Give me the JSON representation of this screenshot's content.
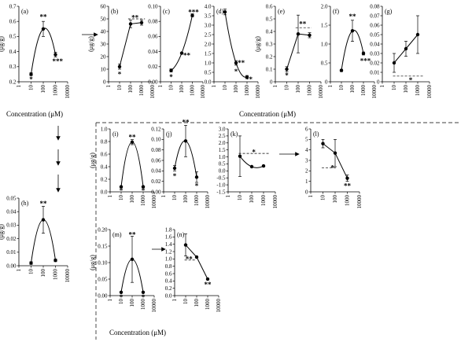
{
  "xlabel_top": "Concentration (μM)",
  "xlabel_left": "Concentration (μM)",
  "xlabel_bottom": "Concentration (μM)",
  "x_ticks_default": [
    "1",
    "10",
    "100",
    "1000",
    "10000"
  ],
  "chart_data": [
    {
      "id": "a",
      "tag": "(a)",
      "type": "line",
      "ylabel": "(μg/g)",
      "x": [
        10,
        100,
        1000
      ],
      "y": [
        0.25,
        0.55,
        0.38
      ],
      "yerr": [
        0.01,
        0.05,
        0.015
      ],
      "ylim": [
        0.2,
        0.7
      ],
      "yticks": [
        "0.2",
        "0.3",
        "0.4",
        "0.5",
        "0.6",
        "0.7"
      ],
      "xlim": [
        1,
        10000
      ],
      "xticks": [
        "1",
        "10",
        "100",
        "1000",
        "10000"
      ],
      "annotations": [
        {
          "text": "**",
          "x": 100,
          "y": 0.63
        },
        {
          "text": "*",
          "x": 10,
          "y": 0.215
        },
        {
          "text": "***",
          "x": 1500,
          "y": 0.335
        }
      ],
      "smooth": true
    },
    {
      "id": "b",
      "tag": "(b)",
      "type": "line",
      "ylabel": "(μg/g)",
      "x": [
        10,
        100,
        1000
      ],
      "y": [
        12,
        46,
        47
      ],
      "yerr": [
        2,
        3,
        2
      ],
      "ylim": [
        0,
        60
      ],
      "yticks": [
        "0",
        "10",
        "20",
        "30",
        "40",
        "50",
        "60"
      ],
      "xlim": [
        1,
        10000
      ],
      "xticks": [
        "1",
        "10",
        "100",
        "1000",
        "10000"
      ],
      "annotations": [
        {
          "text": "**",
          "x": 250,
          "y": 51
        },
        {
          "text": "*",
          "x": 10,
          "y": 6
        }
      ],
      "dashed": [
        {
          "x": [
            60,
            2000
          ],
          "y": 50
        }
      ]
    },
    {
      "id": "c",
      "tag": "(c)",
      "type": "line",
      "ylabel": "",
      "x": [
        10,
        100,
        1000
      ],
      "y": [
        0.015,
        0.038,
        0.088
      ],
      "yerr": [
        0.002,
        0,
        0.002
      ],
      "ylim": [
        0,
        0.1
      ],
      "yticks": [
        "0.00",
        "0.02",
        "0.04",
        "0.06",
        "0.08",
        "0.10"
      ],
      "xlim": [
        1,
        10000
      ],
      "xticks": [
        "1",
        "10",
        "100",
        "1000",
        "10000"
      ],
      "annotations": [
        {
          "text": "***",
          "x": 1300,
          "y": 0.092
        },
        {
          "text": "**",
          "x": 300,
          "y": 0.035
        },
        {
          "text": "*",
          "x": 10,
          "y": 0.006
        }
      ],
      "smooth": true
    },
    {
      "id": "d",
      "tag": "(d)",
      "type": "line",
      "ylabel": "",
      "x": [
        10,
        100,
        1000
      ],
      "y": [
        3.7,
        1.0,
        0.25
      ],
      "yerr": [
        0.15,
        0.12,
        0.08
      ],
      "ylim": [
        0,
        4.0
      ],
      "yticks": [
        "0.0",
        "0.5",
        "1.0",
        "1.5",
        "2.0",
        "2.5",
        "3.0",
        "3.5",
        "4.0"
      ],
      "xlim": [
        1,
        10000
      ],
      "xticks": [
        "1",
        "10",
        "100",
        "1000",
        "10000"
      ],
      "annotations": [
        {
          "text": "*",
          "x": 100,
          "y": 0.55
        },
        {
          "text": "**",
          "x": 300,
          "y": 1.0
        },
        {
          "text": "**",
          "x": 1500,
          "y": 0.12
        }
      ],
      "smooth": true
    },
    {
      "id": "e",
      "tag": "(e)",
      "type": "line",
      "ylabel": "(μg/g)",
      "x": [
        10,
        100,
        1000
      ],
      "y": [
        0.1,
        0.38,
        0.37
      ],
      "yerr": [
        0.02,
        0.15,
        0.02
      ],
      "ylim": [
        0,
        0.6
      ],
      "yticks": [
        "0",
        "0.1",
        "0.2",
        "0.3",
        "0.4",
        "0.5",
        "0.6"
      ],
      "xlim": [
        1,
        10000
      ],
      "xticks": [
        "1",
        "10",
        "100",
        "1000",
        "10000"
      ],
      "annotations": [
        {
          "text": "**",
          "x": 250,
          "y": 0.46
        },
        {
          "text": "*",
          "x": 10,
          "y": 0.05
        }
      ],
      "dashed": [
        {
          "x": [
            60,
            1500
          ],
          "y": 0.43
        }
      ]
    },
    {
      "id": "f",
      "tag": "(f)",
      "type": "line",
      "ylabel": "",
      "x": [
        10,
        100,
        1000
      ],
      "y": [
        0.3,
        1.35,
        0.75
      ],
      "yerr": [
        0.03,
        0.28,
        0.04
      ],
      "ylim": [
        0,
        2.0
      ],
      "yticks": [
        "0",
        "0.5",
        "1.0",
        "1.5",
        "2.0"
      ],
      "xlim": [
        1,
        10000
      ],
      "xticks": [
        "1",
        "10",
        "100",
        "1000",
        "10000"
      ],
      "annotations": [
        {
          "text": "**",
          "x": 100,
          "y": 1.73
        },
        {
          "text": "***",
          "x": 1500,
          "y": 0.55
        }
      ],
      "smooth": true
    },
    {
      "id": "g",
      "tag": "(g)",
      "type": "line",
      "ylabel": "",
      "x": [
        10,
        100,
        1000
      ],
      "y": [
        0.02,
        0.035,
        0.05
      ],
      "yerr": [
        0.01,
        0.008,
        0.02
      ],
      "ylim": [
        0,
        0.08
      ],
      "yticks": [
        "0",
        "0.01",
        "0.02",
        "0.03",
        "0.04",
        "0.05",
        "0.06",
        "0.07",
        "0.08"
      ],
      "xlim": [
        1,
        10000
      ],
      "xticks": [
        "1",
        "10",
        "100",
        "1000",
        "10000"
      ],
      "annotations": [
        {
          "text": "*",
          "x": 250,
          "y": 0.0015
        }
      ],
      "dashed": [
        {
          "x": [
            8,
            3000
          ],
          "y": 0.006
        }
      ]
    },
    {
      "id": "h",
      "tag": "(h)",
      "type": "line",
      "ylabel": "(μg/g)",
      "x": [
        10,
        100,
        1000
      ],
      "y": [
        0.002,
        0.034,
        0.004
      ],
      "yerr": [
        0.001,
        0.01,
        0.001
      ],
      "ylim": [
        0,
        0.05
      ],
      "yticks": [
        "0.00",
        "0.01",
        "0.02",
        "0.03",
        "0.04",
        "0.05"
      ],
      "xlim": [
        1,
        10000
      ],
      "xticks": [
        "1",
        "10",
        "100",
        "1000",
        "10000"
      ],
      "annotations": [
        {
          "text": "**",
          "x": 100,
          "y": 0.046
        }
      ],
      "smooth": true
    },
    {
      "id": "i",
      "tag": "(i)",
      "type": "line",
      "ylabel": "(μg/g)",
      "x": [
        10,
        100,
        1000
      ],
      "y": [
        0.08,
        0.79,
        0.08
      ],
      "yerr": [
        0.01,
        0.04,
        0.01
      ],
      "ylim": [
        0,
        1.0
      ],
      "yticks": [
        "0.0",
        "0.2",
        "0.4",
        "0.6",
        "0.8",
        "1.0"
      ],
      "xlim": [
        1,
        10000
      ],
      "xticks": [
        "1",
        "10",
        "100",
        "1000",
        "10000"
      ],
      "annotations": [
        {
          "text": "**",
          "x": 100,
          "y": 0.87
        },
        {
          "text": "*",
          "x": 10,
          "y": 0.02
        },
        {
          "text": "*",
          "x": 1000,
          "y": 0.02
        }
      ],
      "smooth": true
    },
    {
      "id": "j",
      "tag": "(j)",
      "type": "line",
      "ylabel": "",
      "x": [
        10,
        100,
        1000
      ],
      "y": [
        0.045,
        0.097,
        0.028
      ],
      "yerr": [
        0.005,
        0.03,
        0.01
      ],
      "ylim": [
        0,
        0.12
      ],
      "yticks": [
        "0.00",
        "0.02",
        "0.04",
        "0.06",
        "0.08",
        "0.10",
        "0.12"
      ],
      "xlim": [
        1,
        10000
      ],
      "xticks": [
        "1",
        "10",
        "100",
        "1000",
        "10000"
      ],
      "annotations": [
        {
          "text": "**",
          "x": 100,
          "y": 0.133
        },
        {
          "text": "*",
          "x": 10,
          "y": 0.03
        },
        {
          "text": "*",
          "x": 1000,
          "y": 0.011
        }
      ],
      "smooth": true
    },
    {
      "id": "k",
      "tag": "(k)",
      "type": "line",
      "ylabel": "",
      "x": [
        10,
        100,
        1000
      ],
      "y": [
        1.05,
        0.3,
        0.35
      ],
      "yerr": [
        1.45,
        0.05,
        0.05
      ],
      "ylim": [
        -1.5,
        3.0
      ],
      "yticks": [
        "-1.5",
        "-1.0",
        "-0.5",
        "0.0",
        "0.5",
        "1.0",
        "1.5",
        "2.0",
        "2.5",
        "3.0"
      ],
      "xlim": [
        1,
        10000
      ],
      "xticks": [
        "1",
        "10",
        "100",
        "1000",
        "10000"
      ],
      "annotations": [
        {
          "text": "*",
          "x": 150,
          "y": 1.35
        }
      ],
      "dashed": [
        {
          "x": [
            8,
            3000
          ],
          "y": 1.25
        }
      ],
      "smooth": true
    },
    {
      "id": "l",
      "tag": "(l)",
      "type": "line",
      "ylabel": "",
      "x": [
        10,
        100,
        1000
      ],
      "y": [
        4.6,
        3.7,
        1.3
      ],
      "yerr": [
        0.4,
        1.3,
        0.3
      ],
      "ylim": [
        0,
        6
      ],
      "yticks": [
        "0",
        "1",
        "2",
        "3",
        "4",
        "5",
        "6"
      ],
      "xlim": [
        1,
        10000
      ],
      "xticks": [
        "1",
        "10",
        "100",
        "1000",
        "10000"
      ],
      "annotations": [
        {
          "text": "*",
          "x": 60,
          "y": 2.3
        },
        {
          "text": "**",
          "x": 1000,
          "y": 0.55
        }
      ],
      "dashed": [
        {
          "x": [
            8,
            150
          ],
          "y": 2.3
        }
      ]
    },
    {
      "id": "m",
      "tag": "(m)",
      "type": "line",
      "ylabel": "(μg/g)",
      "x": [
        10,
        100,
        1000
      ],
      "y": [
        0.01,
        0.11,
        0.01
      ],
      "yerr": [
        0.002,
        0.07,
        0.002
      ],
      "ylim": [
        0,
        0.2
      ],
      "yticks": [
        "0.00",
        "0.05",
        "0.10",
        "0.15",
        "0.20"
      ],
      "xlim": [
        1,
        10000
      ],
      "xticks": [
        "1",
        "10",
        "100",
        "1000",
        "10000"
      ],
      "annotations": [
        {
          "text": "**",
          "x": 100,
          "y": 0.185
        },
        {
          "text": "*",
          "x": 10,
          "y": -0.005
        },
        {
          "text": "*",
          "x": 1000,
          "y": -0.005
        }
      ],
      "smooth": true
    },
    {
      "id": "n",
      "tag": "(n)",
      "type": "line",
      "ylabel": "",
      "x": [
        10,
        100,
        1000
      ],
      "y": [
        1.38,
        1.05,
        0.45
      ],
      "yerr": [
        0.3,
        0.02,
        0.02
      ],
      "ylim": [
        0,
        1.8
      ],
      "yticks": [
        "0.0",
        "0.2",
        "0.4",
        "0.6",
        "0.8",
        "1.0",
        "1.2",
        "1.4",
        "1.6",
        "1.8"
      ],
      "xlim": [
        1,
        10000
      ],
      "xticks": [
        "1",
        "10",
        "100",
        "1000",
        "10000"
      ],
      "annotations": [
        {
          "text": "**",
          "x": 20,
          "y": 1.0
        },
        {
          "text": "**",
          "x": 1000,
          "y": 0.3
        }
      ],
      "dashed": [
        {
          "x": [
            8,
            80
          ],
          "y": 0.97
        }
      ]
    }
  ]
}
